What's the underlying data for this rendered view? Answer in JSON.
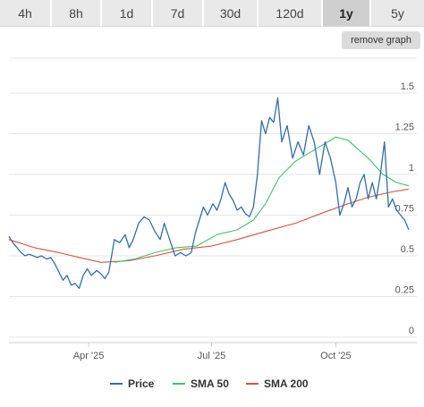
{
  "range_tabs": [
    {
      "label": "4h",
      "active": false
    },
    {
      "label": "8h",
      "active": false
    },
    {
      "label": "1d",
      "active": false
    },
    {
      "label": "7d",
      "active": false
    },
    {
      "label": "30d",
      "active": false
    },
    {
      "label": "120d",
      "active": false
    },
    {
      "label": "1y",
      "active": true
    },
    {
      "label": "5y",
      "active": false
    }
  ],
  "remove_graph_label": "remove graph",
  "colors": {
    "price": "#2f6fb0",
    "sma50": "#3cc46a",
    "sma200": "#e0503c",
    "grid": "#e6e6e6"
  },
  "chart_data": {
    "type": "line",
    "title": "",
    "xlabel": "",
    "ylabel": "",
    "ylim": [
      0,
      1.5
    ],
    "y_ticks": [
      "1.5",
      "1.25",
      "1",
      "0.75",
      "0.5",
      "0.25",
      "0"
    ],
    "x_ticks": [
      "Apr '25",
      "Jul '25",
      "Oct '25"
    ],
    "legend_position": "bottom-center",
    "grid": true,
    "x_range": [
      "2025-02-01",
      "2025-11-30"
    ],
    "series": [
      {
        "name": "Price",
        "color_key": "price",
        "points": [
          [
            "2025-02-01",
            0.62
          ],
          [
            "2025-02-04",
            0.58
          ],
          [
            "2025-02-07",
            0.55
          ],
          [
            "2025-02-10",
            0.52
          ],
          [
            "2025-02-13",
            0.5
          ],
          [
            "2025-02-16",
            0.51
          ],
          [
            "2025-02-19",
            0.5
          ],
          [
            "2025-02-22",
            0.49
          ],
          [
            "2025-02-25",
            0.5
          ],
          [
            "2025-03-01",
            0.48
          ],
          [
            "2025-03-04",
            0.49
          ],
          [
            "2025-03-07",
            0.45
          ],
          [
            "2025-03-10",
            0.4
          ],
          [
            "2025-03-13",
            0.35
          ],
          [
            "2025-03-16",
            0.38
          ],
          [
            "2025-03-19",
            0.32
          ],
          [
            "2025-03-22",
            0.33
          ],
          [
            "2025-03-25",
            0.3
          ],
          [
            "2025-03-28",
            0.38
          ],
          [
            "2025-03-31",
            0.42
          ],
          [
            "2025-04-03",
            0.38
          ],
          [
            "2025-04-07",
            0.41
          ],
          [
            "2025-04-10",
            0.39
          ],
          [
            "2025-04-13",
            0.36
          ],
          [
            "2025-04-16",
            0.4
          ],
          [
            "2025-04-20",
            0.6
          ],
          [
            "2025-04-24",
            0.58
          ],
          [
            "2025-04-28",
            0.63
          ],
          [
            "2025-05-01",
            0.55
          ],
          [
            "2025-05-04",
            0.6
          ],
          [
            "2025-05-08",
            0.7
          ],
          [
            "2025-05-12",
            0.74
          ],
          [
            "2025-05-16",
            0.72
          ],
          [
            "2025-05-20",
            0.65
          ],
          [
            "2025-05-24",
            0.6
          ],
          [
            "2025-05-27",
            0.7
          ],
          [
            "2025-05-31",
            0.6
          ],
          [
            "2025-06-04",
            0.5
          ],
          [
            "2025-06-08",
            0.52
          ],
          [
            "2025-06-12",
            0.5
          ],
          [
            "2025-06-16",
            0.52
          ],
          [
            "2025-06-19",
            0.64
          ],
          [
            "2025-06-22",
            0.72
          ],
          [
            "2025-06-25",
            0.8
          ],
          [
            "2025-06-28",
            0.75
          ],
          [
            "2025-07-02",
            0.82
          ],
          [
            "2025-07-05",
            0.78
          ],
          [
            "2025-07-08",
            0.85
          ],
          [
            "2025-07-11",
            0.95
          ],
          [
            "2025-07-14",
            0.88
          ],
          [
            "2025-07-17",
            0.84
          ],
          [
            "2025-07-20",
            0.78
          ],
          [
            "2025-07-23",
            0.8
          ],
          [
            "2025-07-26",
            0.76
          ],
          [
            "2025-07-29",
            0.74
          ],
          [
            "2025-08-01",
            0.8
          ],
          [
            "2025-08-04",
            1.0
          ],
          [
            "2025-08-07",
            1.33
          ],
          [
            "2025-08-10",
            1.25
          ],
          [
            "2025-08-13",
            1.35
          ],
          [
            "2025-08-16",
            1.32
          ],
          [
            "2025-08-19",
            1.47
          ],
          [
            "2025-08-22",
            1.2
          ],
          [
            "2025-08-26",
            1.3
          ],
          [
            "2025-08-30",
            1.1
          ],
          [
            "2025-09-03",
            1.2
          ],
          [
            "2025-09-07",
            1.12
          ],
          [
            "2025-09-11",
            1.3
          ],
          [
            "2025-09-15",
            1.2
          ],
          [
            "2025-09-19",
            1.0
          ],
          [
            "2025-09-23",
            1.2
          ],
          [
            "2025-09-27",
            1.1
          ],
          [
            "2025-10-01",
            0.95
          ],
          [
            "2025-10-04",
            0.75
          ],
          [
            "2025-10-07",
            0.82
          ],
          [
            "2025-10-10",
            0.92
          ],
          [
            "2025-10-13",
            0.8
          ],
          [
            "2025-10-16",
            0.85
          ],
          [
            "2025-10-19",
            0.95
          ],
          [
            "2025-10-22",
            1.0
          ],
          [
            "2025-10-25",
            0.85
          ],
          [
            "2025-10-28",
            0.95
          ],
          [
            "2025-10-31",
            0.85
          ],
          [
            "2025-11-03",
            1.0
          ],
          [
            "2025-11-06",
            1.2
          ],
          [
            "2025-11-09",
            0.8
          ],
          [
            "2025-11-12",
            0.85
          ],
          [
            "2025-11-15",
            0.78
          ],
          [
            "2025-11-18",
            0.75
          ],
          [
            "2025-11-21",
            0.72
          ],
          [
            "2025-11-24",
            0.66
          ]
        ]
      },
      {
        "name": "SMA 50",
        "color_key": "sma50",
        "points": [
          [
            "2025-04-20",
            0.46
          ],
          [
            "2025-05-05",
            0.48
          ],
          [
            "2025-05-20",
            0.52
          ],
          [
            "2025-06-05",
            0.55
          ],
          [
            "2025-06-20",
            0.56
          ],
          [
            "2025-07-05",
            0.63
          ],
          [
            "2025-07-20",
            0.66
          ],
          [
            "2025-08-01",
            0.72
          ],
          [
            "2025-08-10",
            0.82
          ],
          [
            "2025-08-20",
            0.98
          ],
          [
            "2025-09-01",
            1.08
          ],
          [
            "2025-09-15",
            1.15
          ],
          [
            "2025-09-25",
            1.2
          ],
          [
            "2025-10-01",
            1.23
          ],
          [
            "2025-10-10",
            1.21
          ],
          [
            "2025-10-25",
            1.1
          ],
          [
            "2025-11-05",
            1.0
          ],
          [
            "2025-11-15",
            0.95
          ],
          [
            "2025-11-24",
            0.93
          ]
        ]
      },
      {
        "name": "SMA 200",
        "color_key": "sma200",
        "points": [
          [
            "2025-02-01",
            0.6
          ],
          [
            "2025-02-20",
            0.55
          ],
          [
            "2025-03-10",
            0.52
          ],
          [
            "2025-03-25",
            0.49
          ],
          [
            "2025-04-10",
            0.46
          ],
          [
            "2025-05-01",
            0.47
          ],
          [
            "2025-05-20",
            0.5
          ],
          [
            "2025-06-10",
            0.54
          ],
          [
            "2025-07-01",
            0.56
          ],
          [
            "2025-07-20",
            0.6
          ],
          [
            "2025-08-10",
            0.65
          ],
          [
            "2025-09-01",
            0.7
          ],
          [
            "2025-09-20",
            0.76
          ],
          [
            "2025-10-10",
            0.82
          ],
          [
            "2025-10-25",
            0.86
          ],
          [
            "2025-11-10",
            0.89
          ],
          [
            "2025-11-24",
            0.91
          ]
        ]
      }
    ]
  }
}
